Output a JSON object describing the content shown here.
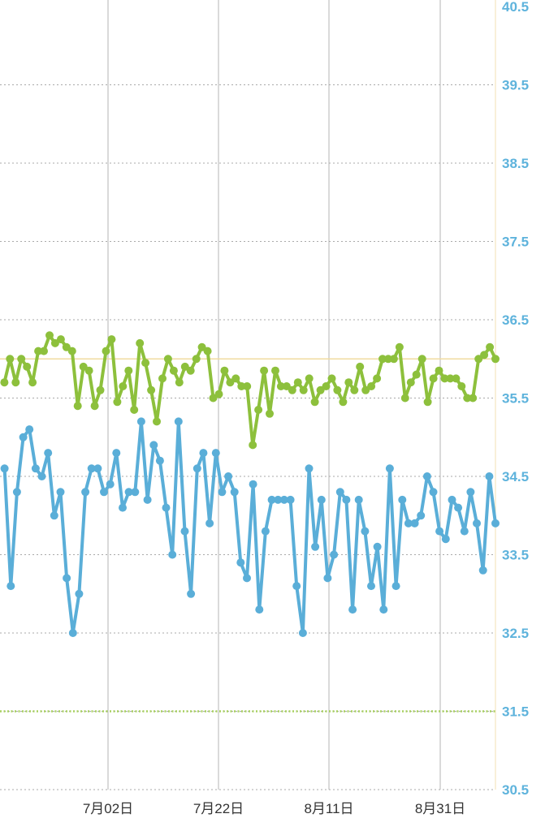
{
  "chart_data": {
    "type": "line",
    "yticks": [
      "40.5",
      "39.5",
      "38.5",
      "37.5",
      "36.5",
      "35.5",
      "34.5",
      "33.5",
      "32.5",
      "31.5",
      "30.5"
    ],
    "ylim": [
      30.5,
      40.5
    ],
    "xticks": [
      "7月02日",
      "7月22日",
      "8月11日",
      "8月31日"
    ],
    "grid": true,
    "reference_lines": [
      {
        "value": 36.0,
        "color": "#f0dca0",
        "style": "solid"
      },
      {
        "value": 31.5,
        "color": "#a8d060",
        "style": "dotted"
      }
    ],
    "series": [
      {
        "color": "#8dc03c",
        "values": [
          35.7,
          36.0,
          35.7,
          36.0,
          35.9,
          35.7,
          36.1,
          36.1,
          36.3,
          36.2,
          36.25,
          36.15,
          36.1,
          35.4,
          35.9,
          35.85,
          35.4,
          35.6,
          36.1,
          36.25,
          35.45,
          35.65,
          35.85,
          35.35,
          36.2,
          35.95,
          35.6,
          35.2,
          35.75,
          36.0,
          35.85,
          35.7,
          35.9,
          35.85,
          36.0,
          36.15,
          36.1,
          35.5,
          35.55,
          35.85,
          35.7,
          35.75,
          35.65,
          35.65,
          34.9,
          35.35,
          35.85,
          35.3,
          35.85,
          35.65,
          35.65,
          35.6,
          35.7,
          35.6,
          35.75,
          35.45,
          35.6,
          35.65,
          35.75,
          35.6,
          35.45,
          35.7,
          35.6,
          35.9,
          35.6,
          35.65,
          35.75,
          36.0,
          36.0,
          36.0,
          36.15,
          35.5,
          35.7,
          35.8,
          36.0,
          35.45,
          35.75,
          35.85,
          35.75,
          35.75,
          35.75,
          35.65,
          35.5,
          35.5,
          36.0,
          36.05,
          36.15,
          36.0
        ]
      },
      {
        "color": "#5aaed8",
        "values": [
          34.6,
          33.1,
          34.3,
          35.0,
          35.1,
          34.6,
          34.5,
          34.8,
          34.0,
          34.3,
          33.2,
          32.5,
          33.0,
          34.3,
          34.6,
          34.6,
          34.3,
          34.4,
          34.8,
          34.1,
          34.3,
          34.3,
          35.2,
          34.2,
          34.9,
          34.7,
          34.1,
          33.5,
          35.2,
          33.8,
          33.0,
          34.6,
          34.8,
          33.9,
          34.8,
          34.3,
          34.5,
          34.3,
          33.4,
          33.2,
          34.4,
          32.8,
          33.8,
          34.2,
          34.2,
          34.2,
          34.2,
          33.1,
          32.5,
          34.6,
          33.6,
          34.2,
          33.2,
          33.5,
          34.3,
          34.2,
          32.8,
          34.2,
          33.8,
          33.1,
          33.6,
          32.8,
          34.6,
          33.1,
          34.2,
          33.9,
          33.9,
          34.0,
          34.5,
          34.3,
          33.8,
          33.7,
          34.2,
          34.1,
          33.8,
          34.3,
          33.9,
          33.3,
          34.5,
          33.9
        ]
      }
    ]
  }
}
